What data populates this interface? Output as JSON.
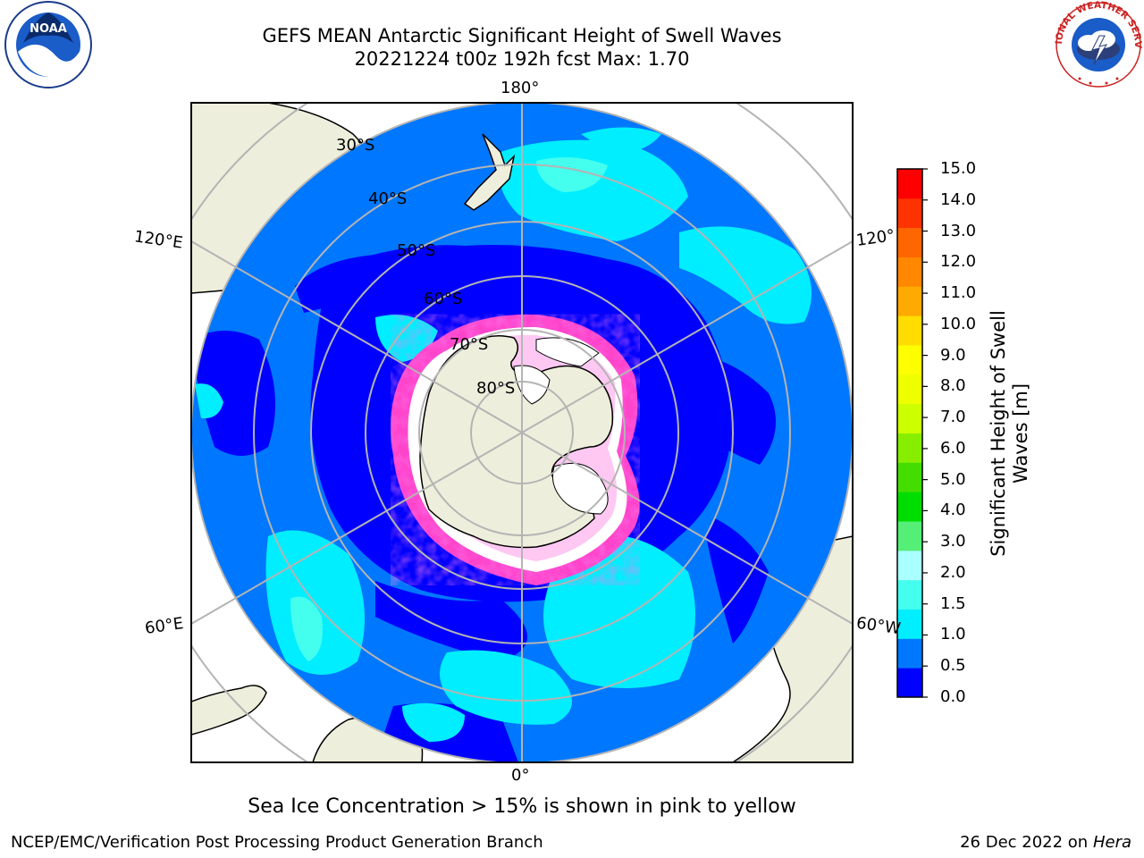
{
  "title": {
    "line1": "GEFS MEAN Antarctic Significant Height of Swell Waves",
    "line2": "20221224 t00z 192h fcst   Max: 1.70"
  },
  "logos": {
    "left": "noaa-logo",
    "right": "national-weather-service-logo",
    "left_text": "NOAA",
    "right_text": "NATIONAL WEATHER SERVICE"
  },
  "map": {
    "projection": "south-polar-stereographic",
    "longitude_labels": [
      "180°",
      "120°E",
      "120°",
      "60°E",
      "60°W",
      "0°"
    ],
    "latitude_labels": [
      "30°S",
      "40°S",
      "50°S",
      "60°S",
      "70°S",
      "80°S"
    ],
    "colors": {
      "land": "#eeeedc",
      "ice_fringe": "#ff44cc",
      "ice_fringe_2": "#ffcc33"
    }
  },
  "colorbar": {
    "label_line1": "Significant Height of Swell",
    "label_line2": "Waves [m]",
    "ticks": [
      "0.0",
      "0.5",
      "1.0",
      "1.5",
      "2.0",
      "3.0",
      "4.0",
      "5.0",
      "6.0",
      "7.0",
      "8.0",
      "9.0",
      "10.0",
      "11.0",
      "12.0",
      "13.0",
      "14.0",
      "15.0"
    ],
    "colors": [
      "#0000ff",
      "#0077ff",
      "#00eeff",
      "#44ffee",
      "#aaffff",
      "#55ee77",
      "#00dd00",
      "#44dd00",
      "#88ee00",
      "#ccff00",
      "#eeff00",
      "#ffff00",
      "#ffdd00",
      "#ffaa00",
      "#ff8800",
      "#ff6600",
      "#ff3300",
      "#ff0000"
    ]
  },
  "caption": "Sea Ice Concentration > 15% is shown in pink to yellow",
  "footer": {
    "left": "NCEP/EMC/Verification Post Processing Product Generation Branch",
    "right_date": "26 Dec 2022 on",
    "right_host": "Hera"
  }
}
